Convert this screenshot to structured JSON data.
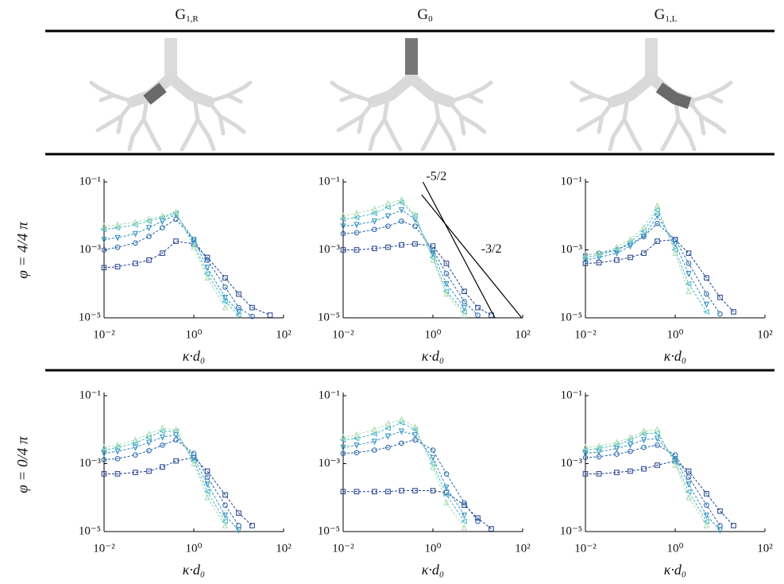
{
  "columns": [
    {
      "text": "G",
      "sub": "1,R"
    },
    {
      "text": "G",
      "sub": "0"
    },
    {
      "text": "G",
      "sub": "1,L"
    }
  ],
  "rows": [
    "φ = 4/4 π",
    "φ = 0/4 π"
  ],
  "chart_data": [
    {
      "type": "line",
      "xlabel": "κ·d₀",
      "log_x": true,
      "log_y": true,
      "xlim": [
        0.01,
        100
      ],
      "ylim": [
        1e-05,
        0.1
      ],
      "xticks": [
        {
          "value": 0.01,
          "label": "10⁻²"
        },
        {
          "value": 1,
          "label": "10⁰"
        },
        {
          "value": 100,
          "label": "10²"
        }
      ],
      "yticks": [
        {
          "value": 1e-05,
          "label": "10⁻⁵"
        },
        {
          "value": 0.001,
          "label": "10⁻³"
        },
        {
          "value": 0.1,
          "label": "10⁻¹"
        }
      ],
      "x": [
        0.01,
        0.02,
        0.05,
        0.1,
        0.2,
        0.4,
        1,
        2,
        5,
        10,
        20,
        50
      ],
      "series": [
        {
          "color": "#1f3d8c",
          "marker": "square",
          "values": [
            0.0003,
            0.00032,
            0.0004,
            0.0005,
            0.0008,
            0.0018,
            0.0015,
            0.0006,
            0.00015,
            5e-05,
            2e-05,
            1.2e-05
          ]
        },
        {
          "color": "#2261a8",
          "marker": "circle",
          "values": [
            0.001,
            0.0012,
            0.0016,
            0.0025,
            0.0045,
            0.008,
            0.002,
            0.0005,
            8e-05,
            2e-05,
            1.1e-05,
            null
          ]
        },
        {
          "color": "#2a8cbe",
          "marker": "triangle-down",
          "values": [
            0.002,
            0.0023,
            0.003,
            0.0045,
            0.007,
            0.011,
            0.002,
            0.0003,
            4e-05,
            1.5e-05,
            null,
            null
          ]
        },
        {
          "color": "#41b6c4",
          "marker": "triangle-left",
          "values": [
            0.004,
            0.0045,
            0.0055,
            0.007,
            0.009,
            0.012,
            0.0015,
            0.0002,
            3e-05,
            1.2e-05,
            null,
            null
          ]
        },
        {
          "color": "#a6dbb0",
          "marker": "triangle-up",
          "values": [
            0.005,
            0.0055,
            0.0065,
            0.008,
            0.01,
            0.013,
            0.0012,
            0.00015,
            2e-05,
            null,
            null,
            null
          ]
        }
      ]
    },
    {
      "type": "line",
      "xlabel": "κ·d₀",
      "log_x": true,
      "log_y": true,
      "xlim": [
        0.01,
        100
      ],
      "ylim": [
        1e-05,
        0.1
      ],
      "xticks": [
        {
          "value": 0.01,
          "label": "10⁻²"
        },
        {
          "value": 1,
          "label": "10⁰"
        },
        {
          "value": 100,
          "label": "10²"
        }
      ],
      "yticks": [
        {
          "value": 1e-05,
          "label": "10⁻⁵"
        },
        {
          "value": 0.001,
          "label": "10⁻³"
        },
        {
          "value": 0.1,
          "label": "10⁻¹"
        }
      ],
      "x": [
        0.01,
        0.02,
        0.05,
        0.1,
        0.2,
        0.4,
        1,
        2,
        5,
        10,
        20,
        50
      ],
      "series": [
        {
          "color": "#1f3d8c",
          "marker": "square",
          "values": [
            0.001,
            0.001,
            0.0011,
            0.0012,
            0.0014,
            0.0015,
            0.0013,
            0.0004,
            6e-05,
            2e-05,
            1.2e-05,
            null
          ]
        },
        {
          "color": "#2261a8",
          "marker": "circle",
          "values": [
            0.003,
            0.0032,
            0.004,
            0.005,
            0.007,
            0.005,
            0.001,
            0.0002,
            3e-05,
            1.2e-05,
            null,
            null
          ]
        },
        {
          "color": "#2a8cbe",
          "marker": "triangle-down",
          "values": [
            0.005,
            0.0055,
            0.007,
            0.01,
            0.015,
            0.008,
            0.0008,
            0.0001,
            2e-05,
            null,
            null,
            null
          ]
        },
        {
          "color": "#41b6c4",
          "marker": "triangle-left",
          "values": [
            0.008,
            0.009,
            0.012,
            0.018,
            0.025,
            0.01,
            0.0006,
            6e-05,
            1.5e-05,
            null,
            null,
            null
          ]
        },
        {
          "color": "#a6dbb0",
          "marker": "triangle-up",
          "values": [
            0.01,
            0.012,
            0.016,
            0.023,
            0.03,
            0.011,
            0.0005,
            5e-05,
            1.2e-05,
            null,
            null,
            null
          ]
        }
      ],
      "annotations": [
        {
          "text": "-5/2",
          "x": [
            0.6,
            24
          ],
          "y": [
            0.1,
            1e-05
          ]
        },
        {
          "text": "-3/2",
          "x": [
            0.56,
            95
          ],
          "y": [
            0.042,
            1e-05
          ]
        }
      ]
    },
    {
      "type": "line",
      "xlabel": "κ·d₀",
      "log_x": true,
      "log_y": true,
      "xlim": [
        0.01,
        100
      ],
      "ylim": [
        1e-05,
        0.1
      ],
      "xticks": [
        {
          "value": 0.01,
          "label": "10⁻²"
        },
        {
          "value": 1,
          "label": "10⁰"
        },
        {
          "value": 100,
          "label": "10²"
        }
      ],
      "yticks": [
        {
          "value": 1e-05,
          "label": "10⁻⁵"
        },
        {
          "value": 0.001,
          "label": "10⁻³"
        },
        {
          "value": 0.1,
          "label": "10⁻¹"
        }
      ],
      "x": [
        0.01,
        0.02,
        0.05,
        0.1,
        0.2,
        0.4,
        1,
        2,
        5,
        10,
        20,
        50
      ],
      "series": [
        {
          "color": "#1f3d8c",
          "marker": "square",
          "values": [
            0.0004,
            0.00042,
            0.0005,
            0.0006,
            0.0008,
            0.0018,
            0.002,
            0.0008,
            0.00015,
            4e-05,
            1.5e-05,
            null
          ]
        },
        {
          "color": "#2261a8",
          "marker": "circle",
          "values": [
            0.0007,
            0.0008,
            0.001,
            0.0015,
            0.0025,
            0.006,
            0.002,
            0.0004,
            5e-05,
            1.3e-05,
            null,
            null
          ]
        },
        {
          "color": "#2a8cbe",
          "marker": "triangle-down",
          "values": [
            0.0005,
            0.0006,
            0.0008,
            0.0013,
            0.0025,
            0.01,
            0.0015,
            0.0002,
            2.5e-05,
            null,
            null,
            null
          ]
        },
        {
          "color": "#41b6c4",
          "marker": "triangle-left",
          "values": [
            0.0006,
            0.0007,
            0.001,
            0.0017,
            0.0035,
            0.015,
            0.001,
            0.0001,
            1.5e-05,
            null,
            null,
            null
          ]
        },
        {
          "color": "#a6dbb0",
          "marker": "triangle-up",
          "values": [
            0.0007,
            0.0008,
            0.0012,
            0.002,
            0.0045,
            0.02,
            0.0008,
            6e-05,
            null,
            null,
            null,
            null
          ]
        }
      ]
    },
    {
      "type": "line",
      "xlabel": "κ·d₀",
      "log_x": true,
      "log_y": true,
      "xlim": [
        0.01,
        100
      ],
      "ylim": [
        1e-05,
        0.1
      ],
      "xticks": [
        {
          "value": 0.01,
          "label": "10⁻²"
        },
        {
          "value": 1,
          "label": "10⁰"
        },
        {
          "value": 100,
          "label": "10²"
        }
      ],
      "yticks": [
        {
          "value": 1e-05,
          "label": "10⁻⁵"
        },
        {
          "value": 0.001,
          "label": "10⁻³"
        },
        {
          "value": 0.1,
          "label": "10⁻¹"
        }
      ],
      "x": [
        0.01,
        0.02,
        0.05,
        0.1,
        0.2,
        0.4,
        1,
        2,
        5,
        10,
        20,
        50
      ],
      "series": [
        {
          "color": "#1f3d8c",
          "marker": "square",
          "values": [
            0.0005,
            0.0005,
            0.00055,
            0.0006,
            0.0008,
            0.0012,
            0.0015,
            0.0006,
            0.00012,
            3.5e-05,
            1.5e-05,
            null
          ]
        },
        {
          "color": "#2261a8",
          "marker": "circle",
          "values": [
            0.0013,
            0.0014,
            0.0018,
            0.0024,
            0.0035,
            0.005,
            0.002,
            0.0004,
            6e-05,
            1.5e-05,
            null,
            null
          ]
        },
        {
          "color": "#2a8cbe",
          "marker": "triangle-down",
          "values": [
            0.002,
            0.0023,
            0.003,
            0.0042,
            0.006,
            0.007,
            0.0015,
            0.00025,
            3e-05,
            1.1e-05,
            null,
            null
          ]
        },
        {
          "color": "#41b6c4",
          "marker": "triangle-left",
          "values": [
            0.0025,
            0.003,
            0.004,
            0.006,
            0.009,
            0.009,
            0.0012,
            0.00015,
            2e-05,
            null,
            null,
            null
          ]
        },
        {
          "color": "#a6dbb0",
          "marker": "triangle-up",
          "values": [
            0.003,
            0.0035,
            0.005,
            0.0075,
            0.011,
            0.01,
            0.001,
            0.0001,
            1.5e-05,
            null,
            null,
            null
          ]
        }
      ]
    },
    {
      "type": "line",
      "xlabel": "κ·d₀",
      "log_x": true,
      "log_y": true,
      "xlim": [
        0.01,
        100
      ],
      "ylim": [
        1e-05,
        0.1
      ],
      "xticks": [
        {
          "value": 0.01,
          "label": "10⁻²"
        },
        {
          "value": 1,
          "label": "10⁰"
        },
        {
          "value": 100,
          "label": "10²"
        }
      ],
      "yticks": [
        {
          "value": 1e-05,
          "label": "10⁻⁵"
        },
        {
          "value": 0.001,
          "label": "10⁻³"
        },
        {
          "value": 0.1,
          "label": "10⁻¹"
        }
      ],
      "x": [
        0.01,
        0.02,
        0.05,
        0.1,
        0.2,
        0.4,
        1,
        2,
        5,
        10,
        20,
        50
      ],
      "series": [
        {
          "color": "#1f3d8c",
          "marker": "square",
          "values": [
            0.00015,
            0.00015,
            0.00015,
            0.00015,
            0.00016,
            0.00016,
            0.00016,
            0.00014,
            6e-05,
            2.5e-05,
            1.2e-05,
            null
          ]
        },
        {
          "color": "#2261a8",
          "marker": "circle",
          "values": [
            0.002,
            0.0021,
            0.0025,
            0.003,
            0.004,
            0.005,
            0.0025,
            0.0005,
            7e-05,
            2e-05,
            null,
            null
          ]
        },
        {
          "color": "#2a8cbe",
          "marker": "triangle-down",
          "values": [
            0.003,
            0.0035,
            0.0045,
            0.0065,
            0.009,
            0.007,
            0.0015,
            0.0002,
            3e-05,
            null,
            null,
            null
          ]
        },
        {
          "color": "#41b6c4",
          "marker": "triangle-left",
          "values": [
            0.005,
            0.0055,
            0.0075,
            0.011,
            0.016,
            0.01,
            0.001,
            0.00012,
            2e-05,
            null,
            null,
            null
          ]
        },
        {
          "color": "#a6dbb0",
          "marker": "triangle-up",
          "values": [
            0.006,
            0.007,
            0.01,
            0.015,
            0.02,
            0.012,
            0.0008,
            7e-05,
            1.3e-05,
            null,
            null,
            null
          ]
        }
      ]
    },
    {
      "type": "line",
      "xlabel": "κ·d₀",
      "log_x": true,
      "log_y": true,
      "xlim": [
        0.01,
        100
      ],
      "ylim": [
        1e-05,
        0.1
      ],
      "xticks": [
        {
          "value": 0.01,
          "label": "10⁻²"
        },
        {
          "value": 1,
          "label": "10⁰"
        },
        {
          "value": 100,
          "label": "10²"
        }
      ],
      "yticks": [
        {
          "value": 1e-05,
          "label": "10⁻⁵"
        },
        {
          "value": 0.001,
          "label": "10⁻³"
        },
        {
          "value": 0.1,
          "label": "10⁻¹"
        }
      ],
      "x": [
        0.01,
        0.02,
        0.05,
        0.1,
        0.2,
        0.4,
        1,
        2,
        5,
        10,
        20,
        50
      ],
      "series": [
        {
          "color": "#1f3d8c",
          "marker": "square",
          "values": [
            0.0005,
            0.0005,
            0.00055,
            0.0006,
            0.0007,
            0.0009,
            0.0012,
            0.0006,
            0.00013,
            4e-05,
            1.5e-05,
            null
          ]
        },
        {
          "color": "#2261a8",
          "marker": "circle",
          "values": [
            0.0015,
            0.0016,
            0.0019,
            0.0023,
            0.003,
            0.0035,
            0.0018,
            0.0004,
            6e-05,
            1.5e-05,
            null,
            null
          ]
        },
        {
          "color": "#2a8cbe",
          "marker": "triangle-down",
          "values": [
            0.002,
            0.0022,
            0.0028,
            0.0036,
            0.005,
            0.0055,
            0.0014,
            0.00025,
            3e-05,
            1.1e-05,
            null,
            null
          ]
        },
        {
          "color": "#41b6c4",
          "marker": "triangle-left",
          "values": [
            0.0025,
            0.0028,
            0.0035,
            0.005,
            0.0075,
            0.008,
            0.0011,
            0.00015,
            2e-05,
            null,
            null,
            null
          ]
        },
        {
          "color": "#a6dbb0",
          "marker": "triangle-up",
          "values": [
            0.003,
            0.0033,
            0.0042,
            0.006,
            0.009,
            0.01,
            0.0009,
            0.0001,
            1.5e-05,
            null,
            null,
            null
          ]
        }
      ]
    }
  ]
}
